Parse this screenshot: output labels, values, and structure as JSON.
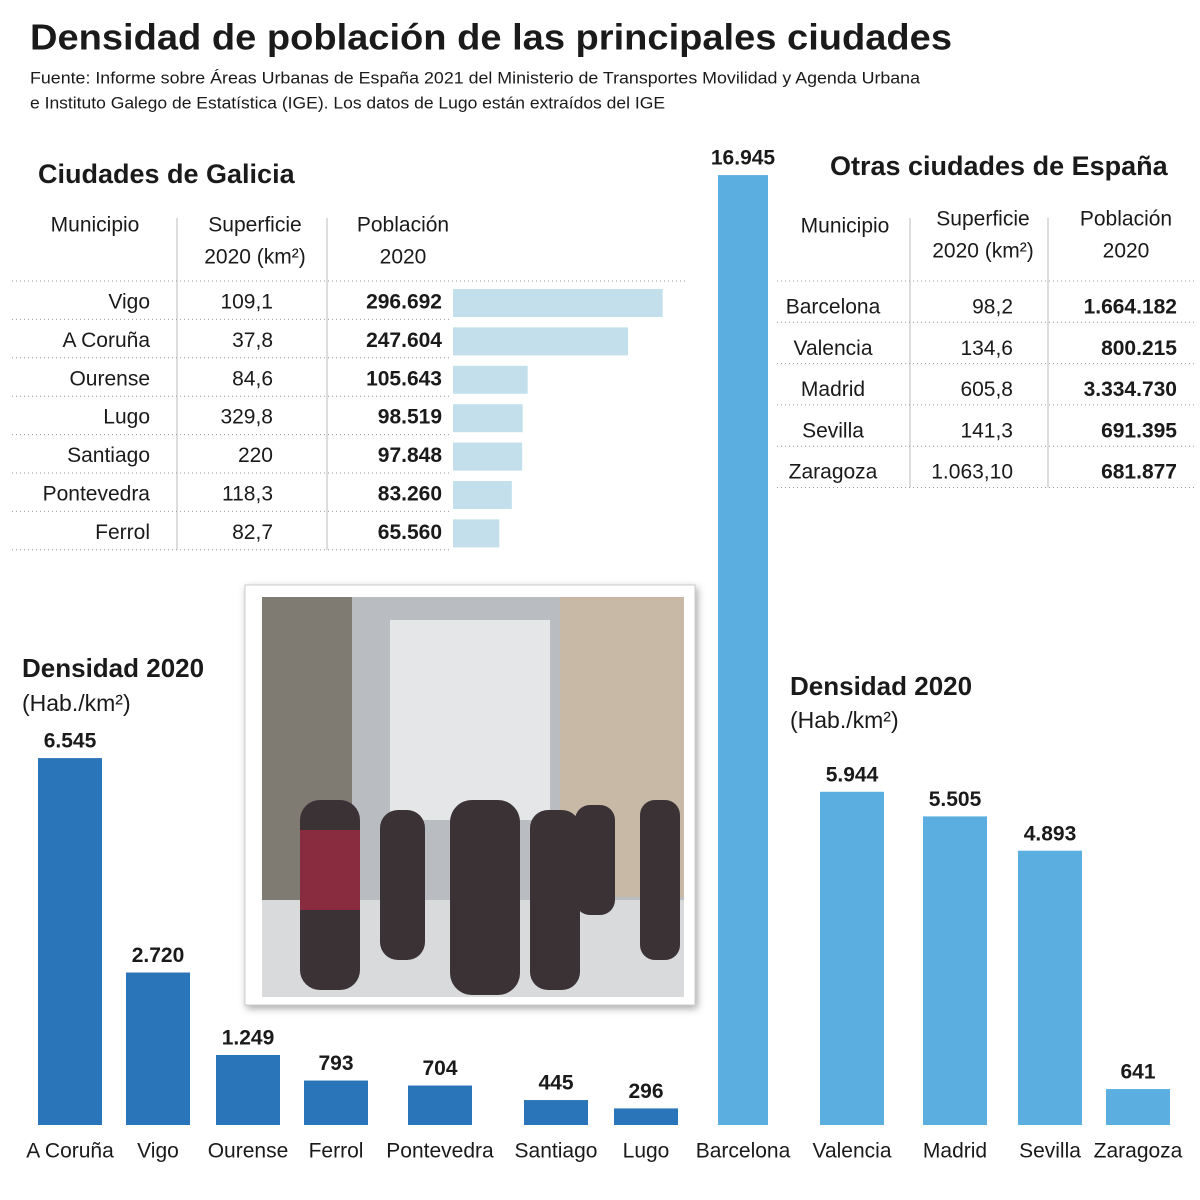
{
  "header": {
    "title": "Densidad de población de las principales ciudades",
    "source": [
      "Fuente: Informe sobre Áreas Urbanas de España 2021 del Ministerio de Transportes Movilidad y Agenda Urbana",
      "e Instituto Galego de Estatística (IGE). Los datos de Lugo están extraídos del IGE"
    ]
  },
  "tables": [
    {
      "title": "Ciudades de Galicia",
      "columns": [
        [
          "Municipio"
        ],
        [
          "Superficie",
          "2020 (km²)"
        ],
        [
          "Población",
          "2020"
        ]
      ],
      "municipios": [
        "Vigo",
        "A Coruña",
        "Ourense",
        "Lugo",
        "Santiago",
        "Pontevedra",
        "Ferrol"
      ],
      "superficie": [
        "109,1",
        "37,8",
        "84,6",
        "329,8",
        "220",
        "118,3",
        "82,7"
      ],
      "poblacion": {
        "values": [
          296692,
          247604,
          105643,
          98519,
          97848,
          83260,
          65560
        ],
        "value_labels": [
          "296.692",
          "247.604",
          "105.643",
          "98.519",
          "97.848",
          "83.260",
          "65.560"
        ],
        "color": "#c2dfeb"
      }
    },
    {
      "title": "Otras ciudades de España",
      "columns": [
        [
          "Municipio"
        ],
        [
          "Superficie",
          "2020 (km²)"
        ],
        [
          "Población",
          "2020"
        ]
      ],
      "municipios": [
        "Barcelona",
        "Valencia",
        "Madrid",
        "Sevilla",
        "Zaragoza"
      ],
      "superficie": [
        "98,2",
        "134,6",
        "605,8",
        "141,3",
        "1.063,10"
      ],
      "poblacion": {
        "values": [
          1664182,
          800215,
          3334730,
          691395,
          681877
        ],
        "value_labels": [
          "1.664.182",
          "800.215",
          "3.334.730",
          "691.395",
          "681.877"
        ]
      }
    }
  ],
  "chart_data": [
    {
      "type": "bar",
      "title": "Densidad 2020",
      "subtitle": "(Hab./km²)",
      "categories": [
        "A Coruña",
        "Vigo",
        "Ourense",
        "Ferrol",
        "Pontevedra",
        "Santiago",
        "Lugo"
      ],
      "values": [
        6545,
        2720,
        1249,
        793,
        704,
        445,
        296
      ],
      "value_labels": [
        "6.545",
        "2.720",
        "1.249",
        "793",
        "704",
        "445",
        "296"
      ],
      "color": "#2a74b9"
    },
    {
      "type": "bar",
      "title": "Densidad 2020",
      "subtitle": "(Hab./km²)",
      "categories": [
        "Barcelona",
        "Valencia",
        "Madrid",
        "Sevilla",
        "Zaragoza"
      ],
      "values": [
        16945,
        5944,
        5505,
        4893,
        641
      ],
      "value_labels": [
        "16.945",
        "5.944",
        "5.505",
        "4.893",
        "641"
      ],
      "color": "#5aaee0"
    }
  ]
}
